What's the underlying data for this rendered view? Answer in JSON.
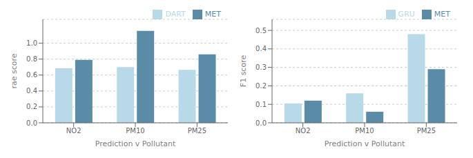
{
  "chart_data": [
    {
      "type": "bar",
      "categories": [
        "NO2",
        "PM10",
        "PM25"
      ],
      "series": [
        {
          "name": "DART",
          "color": "#b8d9e8",
          "values": [
            0.685,
            0.7,
            0.665
          ]
        },
        {
          "name": "MET",
          "color": "#5a8ca8",
          "values": [
            0.79,
            1.155,
            0.86
          ]
        }
      ],
      "xlabel": "Prediction v Pollutant",
      "ylabel": "rae score",
      "ylim": [
        0,
        1.3
      ],
      "yticks": [
        {
          "value": 0,
          "label": "0.0"
        },
        0.2,
        0.4,
        0.6,
        0.8,
        {
          "value": 1.0,
          "label": "1.0"
        }
      ],
      "grid": true,
      "legend": "upper right"
    },
    {
      "type": "bar",
      "categories": [
        "NO2",
        "PM10",
        "PM25"
      ],
      "series": [
        {
          "name": "GRU",
          "color": "#b8d9e8",
          "values": [
            0.105,
            0.16,
            0.48
          ]
        },
        {
          "name": "MET",
          "color": "#5a8ca8",
          "values": [
            0.12,
            0.06,
            0.29
          ]
        }
      ],
      "xlabel": "Prediction v Pollutant",
      "ylabel": "F1 score",
      "ylim": [
        0,
        0.56
      ],
      "yticks": [
        {
          "value": 0,
          "label": "0.0"
        },
        0.1,
        0.2,
        0.3,
        0.4,
        0.5
      ],
      "grid": true,
      "legend": "upper right"
    }
  ]
}
